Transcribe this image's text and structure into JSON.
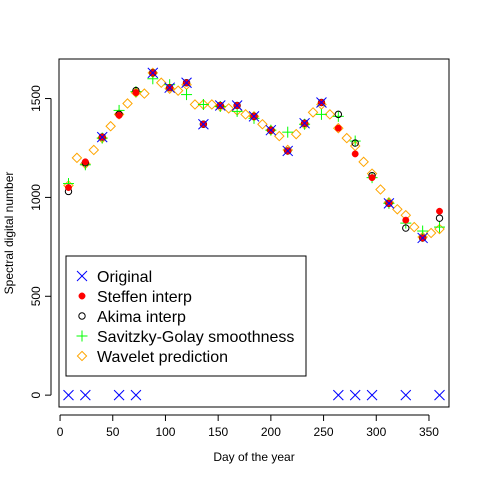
{
  "chart_data": {
    "type": "scatter",
    "title": "",
    "xlabel": "Day of the year",
    "ylabel": "Spectral digital number",
    "xlim": [
      -1,
      369
    ],
    "ylim": [
      -60,
      1700
    ],
    "xticks": [
      0,
      50,
      100,
      150,
      200,
      250,
      300,
      350
    ],
    "yticks": [
      0,
      500,
      1000,
      1500
    ],
    "grid": false,
    "legend_position": "bottom-left",
    "series": [
      {
        "name": "Original",
        "marker": "x",
        "color": "#0000ff",
        "x": [
          8,
          24,
          40,
          56,
          72,
          88,
          104,
          120,
          136,
          152,
          168,
          184,
          200,
          216,
          232,
          248,
          264,
          280,
          296,
          312,
          328,
          344,
          360
        ],
        "y": [
          0,
          0,
          1305,
          0,
          0,
          1630,
          1555,
          1580,
          1370,
          1465,
          1465,
          1410,
          1340,
          1235,
          1375,
          1480,
          0,
          0,
          0,
          970,
          0,
          795,
          0
        ]
      },
      {
        "name": "Steffen interp",
        "marker": "filled-circle",
        "color": "#ff0000",
        "x": [
          8,
          24,
          40,
          56,
          72,
          88,
          104,
          120,
          136,
          152,
          168,
          184,
          200,
          216,
          232,
          248,
          264,
          280,
          296,
          312,
          328,
          344,
          360
        ],
        "y": [
          1050,
          1180,
          1305,
          1415,
          1530,
          1630,
          1555,
          1580,
          1370,
          1465,
          1465,
          1410,
          1340,
          1235,
          1375,
          1480,
          1350,
          1220,
          1100,
          970,
          885,
          795,
          930
        ]
      },
      {
        "name": "Akima interp",
        "marker": "open-circle",
        "color": "#000000",
        "x": [
          8,
          24,
          40,
          56,
          72,
          88,
          104,
          120,
          136,
          152,
          168,
          184,
          200,
          216,
          232,
          248,
          264,
          280,
          296,
          312,
          328,
          344,
          360
        ],
        "y": [
          1030,
          1175,
          1305,
          1420,
          1540,
          1630,
          1555,
          1580,
          1370,
          1465,
          1465,
          1410,
          1340,
          1235,
          1375,
          1480,
          1420,
          1275,
          1110,
          970,
          845,
          795,
          895
        ]
      },
      {
        "name": "Savitzky-Golay smoothness",
        "marker": "plus",
        "color": "#00ff00",
        "x": [
          8,
          24,
          40,
          56,
          72,
          88,
          104,
          120,
          136,
          152,
          168,
          184,
          200,
          216,
          232,
          248,
          264,
          280,
          296,
          312,
          328,
          344,
          360
        ],
        "y": [
          1070,
          1165,
          1300,
          1440,
          1535,
          1600,
          1570,
          1520,
          1470,
          1460,
          1435,
          1400,
          1340,
          1330,
          1370,
          1420,
          1410,
          1285,
          1100,
          970,
          870,
          830,
          850
        ]
      },
      {
        "name": "Wavelet prediction",
        "marker": "diamond",
        "color": "#ffa500",
        "x": [
          8,
          16,
          24,
          32,
          40,
          48,
          56,
          64,
          72,
          80,
          88,
          96,
          104,
          112,
          120,
          128,
          136,
          144,
          152,
          160,
          168,
          176,
          184,
          192,
          200,
          208,
          216,
          224,
          232,
          240,
          248,
          256,
          264,
          272,
          280,
          288,
          296,
          304,
          312,
          320,
          328,
          336,
          344,
          352,
          360
        ],
        "y": [
          1060,
          1200,
          1170,
          1240,
          1300,
          1360,
          1420,
          1475,
          1530,
          1525,
          1630,
          1580,
          1550,
          1540,
          1570,
          1470,
          1470,
          1470,
          1460,
          1450,
          1440,
          1420,
          1410,
          1370,
          1340,
          1310,
          1240,
          1320,
          1370,
          1430,
          1470,
          1420,
          1350,
          1300,
          1260,
          1180,
          1120,
          1040,
          975,
          940,
          910,
          850,
          800,
          820,
          840
        ]
      }
    ]
  }
}
